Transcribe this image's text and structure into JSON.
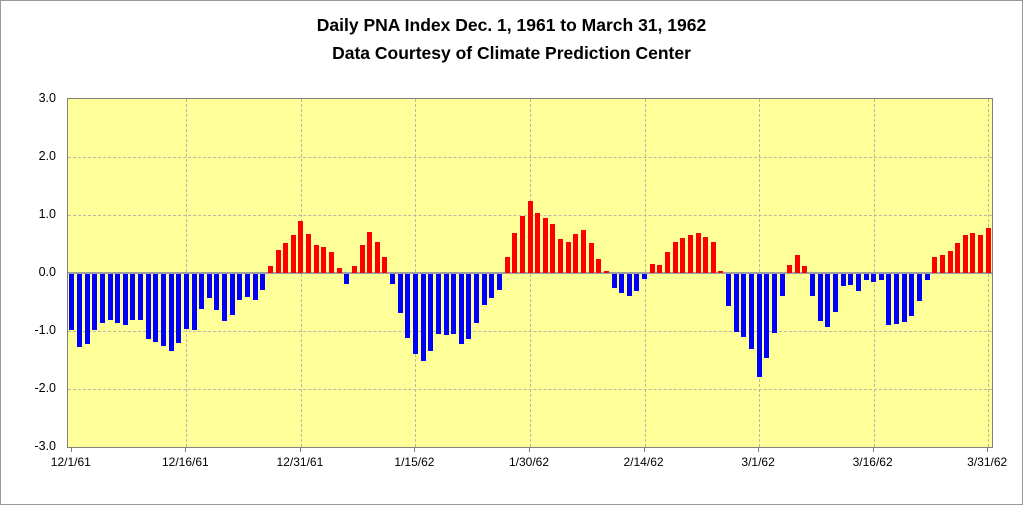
{
  "title": {
    "line1": "Daily PNA Index Dec. 1, 1961 to March 31, 1962",
    "line2": "Data Courtesy of Climate Prediction Center"
  },
  "chart_data": {
    "type": "bar",
    "title": "Daily PNA Index Dec. 1, 1961 to March 31, 1962",
    "subtitle": "Data Courtesy of Climate Prediction Center",
    "xlabel": "",
    "ylabel": "",
    "ylim": [
      -3.0,
      3.0
    ],
    "y_tick_labels": [
      "3.0",
      "2.0",
      "1.0",
      "0.0",
      "-1.0",
      "-2.0",
      "-3.0"
    ],
    "y_tick_values": [
      3,
      2,
      1,
      0,
      -1,
      -2,
      -3
    ],
    "y_gridline_values": [
      2,
      1,
      -1,
      -2
    ],
    "x_tick_labels": [
      "12/1/61",
      "12/16/61",
      "12/31/61",
      "1/15/62",
      "1/30/62",
      "2/14/62",
      "3/1/62",
      "3/16/62",
      "3/31/62"
    ],
    "x_tick_day_index": [
      1,
      16,
      31,
      46,
      61,
      76,
      91,
      106,
      121
    ],
    "grid": "dashed gray lines at 1.0 vertical intervals and at each 15-day x tick",
    "legend": "none",
    "plot_background_color": "#FFFF99",
    "positive_bar_color": "#FF0000",
    "negative_bar_color": "#0000FF",
    "zero_line_color": "#a0a0a0",
    "dates": [
      "12/1/61",
      "12/2/61",
      "12/3/61",
      "12/4/61",
      "12/5/61",
      "12/6/61",
      "12/7/61",
      "12/8/61",
      "12/9/61",
      "12/10/61",
      "12/11/61",
      "12/12/61",
      "12/13/61",
      "12/14/61",
      "12/15/61",
      "12/16/61",
      "12/17/61",
      "12/18/61",
      "12/19/61",
      "12/20/61",
      "12/21/61",
      "12/22/61",
      "12/23/61",
      "12/24/61",
      "12/25/61",
      "12/26/61",
      "12/27/61",
      "12/28/61",
      "12/29/61",
      "12/30/61",
      "12/31/61",
      "1/1/62",
      "1/2/62",
      "1/3/62",
      "1/4/62",
      "1/5/62",
      "1/6/62",
      "1/7/62",
      "1/8/62",
      "1/9/62",
      "1/10/62",
      "1/11/62",
      "1/12/62",
      "1/13/62",
      "1/14/62",
      "1/15/62",
      "1/16/62",
      "1/17/62",
      "1/18/62",
      "1/19/62",
      "1/20/62",
      "1/21/62",
      "1/22/62",
      "1/23/62",
      "1/24/62",
      "1/25/62",
      "1/26/62",
      "1/27/62",
      "1/28/62",
      "1/29/62",
      "1/30/62",
      "1/31/62",
      "2/1/62",
      "2/2/62",
      "2/3/62",
      "2/4/62",
      "2/5/62",
      "2/6/62",
      "2/7/62",
      "2/8/62",
      "2/9/62",
      "2/10/62",
      "2/11/62",
      "2/12/62",
      "2/13/62",
      "2/14/62",
      "2/15/62",
      "2/16/62",
      "2/17/62",
      "2/18/62",
      "2/19/62",
      "2/20/62",
      "2/21/62",
      "2/22/62",
      "2/23/62",
      "2/24/62",
      "2/25/62",
      "2/26/62",
      "2/27/62",
      "2/28/62",
      "3/1/62",
      "3/2/62",
      "3/3/62",
      "3/4/62",
      "3/5/62",
      "3/6/62",
      "3/7/62",
      "3/8/62",
      "3/9/62",
      "3/10/62",
      "3/11/62",
      "3/12/62",
      "3/13/62",
      "3/14/62",
      "3/15/62",
      "3/16/62",
      "3/17/62",
      "3/18/62",
      "3/19/62",
      "3/20/62",
      "3/21/62",
      "3/22/62",
      "3/23/62",
      "3/24/62",
      "3/25/62",
      "3/26/62",
      "3/27/62",
      "3/28/62",
      "3/29/62",
      "3/30/62",
      "3/31/62"
    ],
    "values": [
      -0.96,
      -1.26,
      -1.21,
      -0.96,
      -0.84,
      -0.8,
      -0.84,
      -0.88,
      -0.8,
      -0.79,
      -1.12,
      -1.18,
      -1.24,
      -1.32,
      -1.19,
      -0.95,
      -0.96,
      -0.61,
      -0.41,
      -0.62,
      -0.81,
      -0.71,
      -0.45,
      -0.39,
      -0.44,
      -0.28,
      0.12,
      0.4,
      0.51,
      0.66,
      0.9,
      0.67,
      0.49,
      0.44,
      0.37,
      0.08,
      -0.18,
      0.12,
      0.49,
      0.71,
      0.54,
      0.28,
      -0.17,
      -0.68,
      -1.1,
      -1.38,
      -1.5,
      -1.32,
      -1.03,
      -1.05,
      -1.03,
      -1.2,
      -1.12,
      -0.85,
      -0.53,
      -0.42,
      -0.27,
      0.28,
      0.69,
      0.98,
      1.24,
      1.04,
      0.94,
      0.84,
      0.58,
      0.54,
      0.67,
      0.75,
      0.51,
      0.25,
      0.03,
      -0.24,
      -0.32,
      -0.38,
      -0.3,
      -0.08,
      0.15,
      0.13,
      0.36,
      0.53,
      0.61,
      0.65,
      0.69,
      0.62,
      0.53,
      0.03,
      -0.56,
      -1.0,
      -1.09,
      -1.29,
      -1.77,
      -1.45,
      -1.02,
      -0.38,
      0.13,
      0.31,
      0.12,
      -0.38,
      -0.81,
      -0.91,
      -0.65,
      -0.2,
      -0.19,
      -0.3,
      -0.11,
      -0.14,
      -0.1,
      -0.88,
      -0.87,
      -0.82,
      -0.72,
      -0.47,
      -0.1,
      0.28,
      0.31,
      0.38,
      0.52,
      0.65,
      0.69,
      0.65,
      0.78
    ]
  }
}
